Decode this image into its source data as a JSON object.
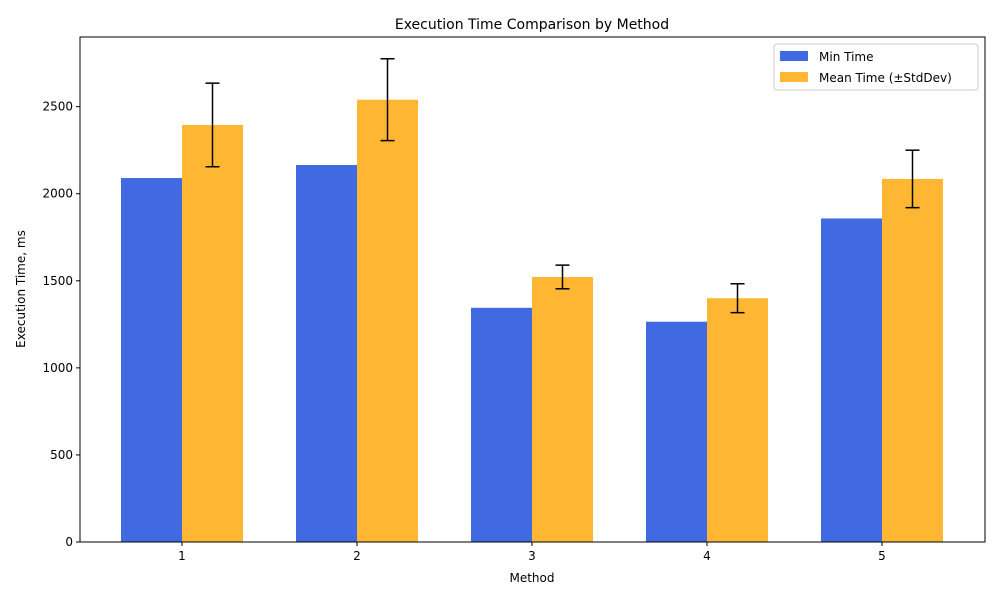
{
  "chart_data": {
    "type": "bar",
    "title": "Execution Time Comparison by Method",
    "xlabel": "Method",
    "ylabel": "Execution Time, ms",
    "categories": [
      "1",
      "2",
      "3",
      "4",
      "5"
    ],
    "ylim": [
      0,
      2900
    ],
    "yticks": [
      0,
      500,
      1000,
      1500,
      2000,
      2500
    ],
    "grid": false,
    "legend_position": "top-right",
    "series": [
      {
        "name": "Min Time",
        "color": "#4169E1",
        "values": [
          2090,
          2165,
          1345,
          1265,
          1858
        ]
      },
      {
        "name": "Mean Time (±StdDev)",
        "color": "#FFB733",
        "values": [
          2395,
          2540,
          1522,
          1400,
          2085
        ],
        "errors": [
          240,
          235,
          68,
          83,
          165
        ]
      }
    ]
  }
}
